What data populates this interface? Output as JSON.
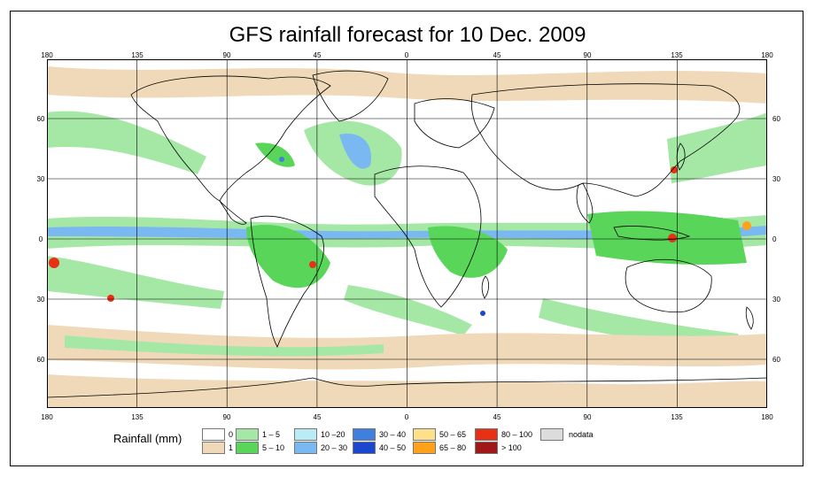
{
  "title": "GFS rainfall forecast for 10 Dec. 2009",
  "axes": {
    "longitude_ticks": [
      "180",
      "135",
      "90",
      "45",
      "0",
      "45",
      "90",
      "135",
      "180"
    ],
    "latitude_ticks": [
      "60",
      "30",
      "0",
      "30",
      "60"
    ]
  },
  "legend": {
    "title": "Rainfall (mm)",
    "items": [
      {
        "label": "0",
        "color": "#ffffff"
      },
      {
        "label": "1",
        "color": "#efd9b9"
      },
      {
        "label": "1 – 5",
        "color": "#a5e8a5"
      },
      {
        "label": "5 – 10",
        "color": "#59d559"
      },
      {
        "label": "10 –20",
        "color": "#b9ecf5"
      },
      {
        "label": "20 – 30",
        "color": "#7ab8f2"
      },
      {
        "label": "30 – 40",
        "color": "#3f7fde"
      },
      {
        "label": "40 – 50",
        "color": "#1a46d0"
      },
      {
        "label": "50 – 65",
        "color": "#ffe08a"
      },
      {
        "label": "65 – 80",
        "color": "#ffa21a"
      },
      {
        "label": "80 – 100",
        "color": "#e83015"
      },
      {
        "label": "> 100",
        "color": "#a01818"
      },
      {
        "label": "nodata",
        "color": "#dcdcdc"
      }
    ]
  },
  "colors": {
    "land_outline": "#000000",
    "grid": "#000000",
    "ocean": "#ffffff"
  }
}
